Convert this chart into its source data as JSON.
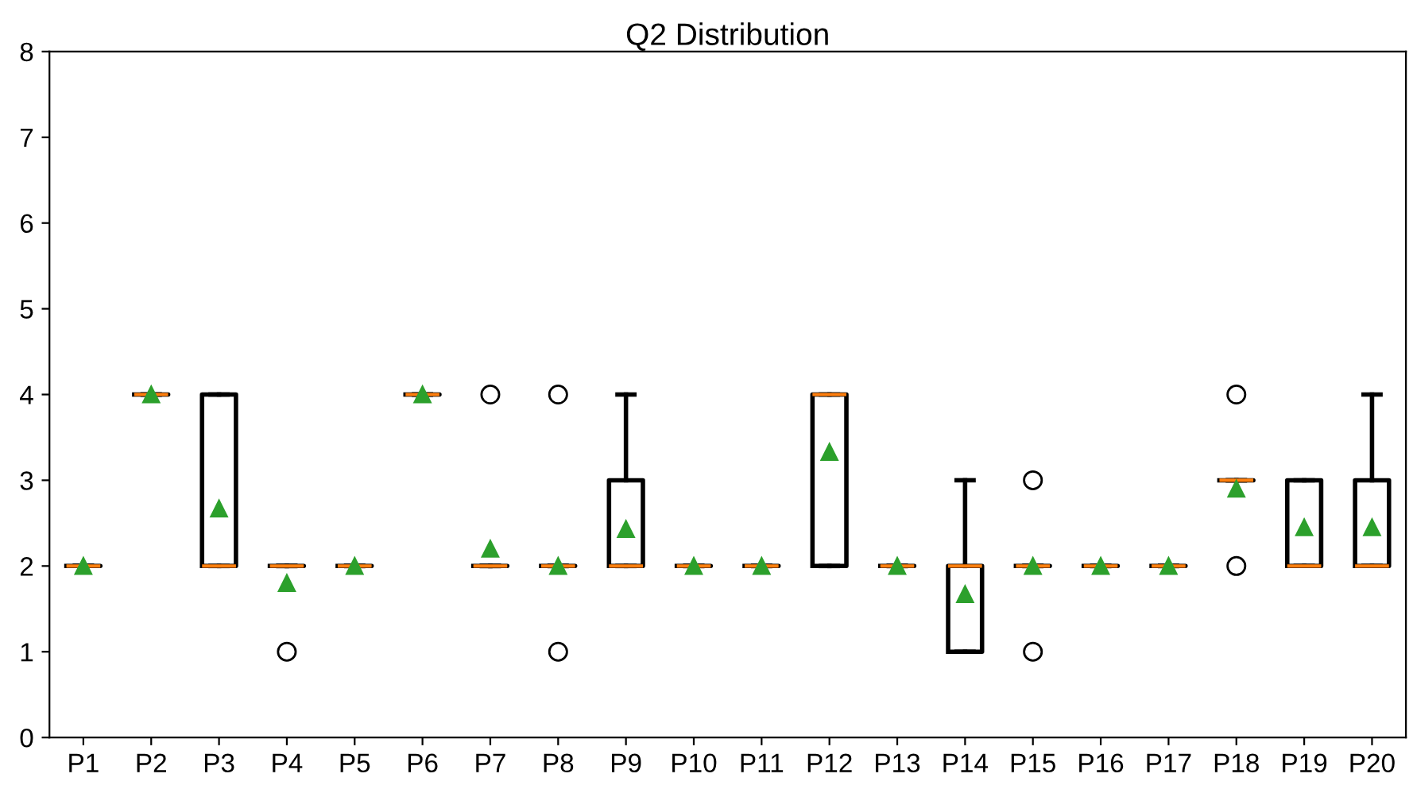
{
  "chart_data": {
    "type": "box",
    "title": "Q2 Distribution",
    "categories": [
      "P1",
      "P2",
      "P3",
      "P4",
      "P5",
      "P6",
      "P7",
      "P8",
      "P9",
      "P10",
      "P11",
      "P12",
      "P13",
      "P14",
      "P15",
      "P16",
      "P17",
      "P18",
      "P19",
      "P20"
    ],
    "boxes": [
      {
        "low": 2,
        "q1": 2,
        "median": 2,
        "q3": 2,
        "high": 2,
        "mean": 2.0
      },
      {
        "low": 4,
        "q1": 4,
        "median": 4,
        "q3": 4,
        "high": 4,
        "mean": 4.0
      },
      {
        "low": 2,
        "q1": 2,
        "median": 2,
        "q3": 4,
        "high": 4,
        "mean": 2.67
      },
      {
        "low": 2,
        "q1": 2,
        "median": 2,
        "q3": 2,
        "high": 2,
        "mean": 1.8,
        "outliers": [
          1
        ]
      },
      {
        "low": 2,
        "q1": 2,
        "median": 2,
        "q3": 2,
        "high": 2,
        "mean": 2.0
      },
      {
        "low": 4,
        "q1": 4,
        "median": 4,
        "q3": 4,
        "high": 4,
        "mean": 4.0
      },
      {
        "low": 2,
        "q1": 2,
        "median": 2,
        "q3": 2,
        "high": 2,
        "mean": 2.2,
        "outliers": [
          4
        ]
      },
      {
        "low": 2,
        "q1": 2,
        "median": 2,
        "q3": 2,
        "high": 2,
        "mean": 2.0,
        "outliers": [
          4,
          1
        ]
      },
      {
        "low": 2,
        "q1": 2,
        "median": 2,
        "q3": 3,
        "high": 4,
        "mean": 2.43
      },
      {
        "low": 2,
        "q1": 2,
        "median": 2,
        "q3": 2,
        "high": 2,
        "mean": 2.0
      },
      {
        "low": 2,
        "q1": 2,
        "median": 2,
        "q3": 2,
        "high": 2,
        "mean": 2.0
      },
      {
        "low": 2,
        "q1": 2,
        "median": 4,
        "q3": 4,
        "high": 4,
        "mean": 3.33
      },
      {
        "low": 2,
        "q1": 2,
        "median": 2,
        "q3": 2,
        "high": 2,
        "mean": 2.0
      },
      {
        "low": 1,
        "q1": 1,
        "median": 2,
        "q3": 2,
        "high": 3,
        "mean": 1.67
      },
      {
        "low": 2,
        "q1": 2,
        "median": 2,
        "q3": 2,
        "high": 2,
        "mean": 2.0,
        "outliers": [
          3,
          1
        ]
      },
      {
        "low": 2,
        "q1": 2,
        "median": 2,
        "q3": 2,
        "high": 2,
        "mean": 2.0
      },
      {
        "low": 2,
        "q1": 2,
        "median": 2,
        "q3": 2,
        "high": 2,
        "mean": 2.0
      },
      {
        "low": 3,
        "q1": 3,
        "median": 3,
        "q3": 3,
        "high": 3,
        "mean": 2.9,
        "outliers": [
          4,
          2
        ]
      },
      {
        "low": 2,
        "q1": 2,
        "median": 2,
        "q3": 3,
        "high": 3,
        "mean": 2.45
      },
      {
        "low": 2,
        "q1": 2,
        "median": 2,
        "q3": 3,
        "high": 4,
        "mean": 2.45
      }
    ],
    "ylim": [
      0,
      8
    ],
    "yticks": [
      0,
      1,
      2,
      3,
      4,
      5,
      6,
      7,
      8
    ],
    "grid": false,
    "legend": false
  }
}
